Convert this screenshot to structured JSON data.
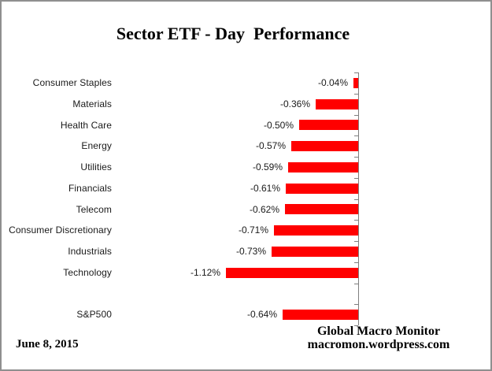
{
  "window": {
    "background": "#ffffff",
    "border_color": "#8f8f8f"
  },
  "title": "Sector ETF - Day  Performance",
  "footer": {
    "date": "June 8, 2015",
    "attribution_line1": "Global Macro Monitor",
    "attribution_line2": "macromon.wordpress.com"
  },
  "chart_data": {
    "type": "bar",
    "orientation": "horizontal",
    "title": "Sector ETF - Day  Performance",
    "categories": [
      "Consumer Staples",
      "Materials",
      "Health Care",
      "Energy",
      "Utilities",
      "Financials",
      "Telecom",
      "Consumer Discretionary",
      "Industrials",
      "Technology",
      "",
      "S&P500"
    ],
    "values": [
      -0.04,
      -0.36,
      -0.5,
      -0.57,
      -0.59,
      -0.61,
      -0.62,
      -0.71,
      -0.73,
      -1.12,
      null,
      -0.64
    ],
    "value_labels": [
      "-0.04%",
      "-0.36%",
      "-0.50%",
      "-0.57%",
      "-0.59%",
      "-0.61%",
      "-0.62%",
      "-0.71%",
      "-0.73%",
      "-1.12%",
      "",
      "-0.64%"
    ],
    "unit": "percent",
    "xlim": [
      -1.2,
      0
    ],
    "bar_color": "#ff0000",
    "axis_color": "#7f7f7f",
    "grid": false,
    "legend": false,
    "data_labels": "outside-end"
  }
}
